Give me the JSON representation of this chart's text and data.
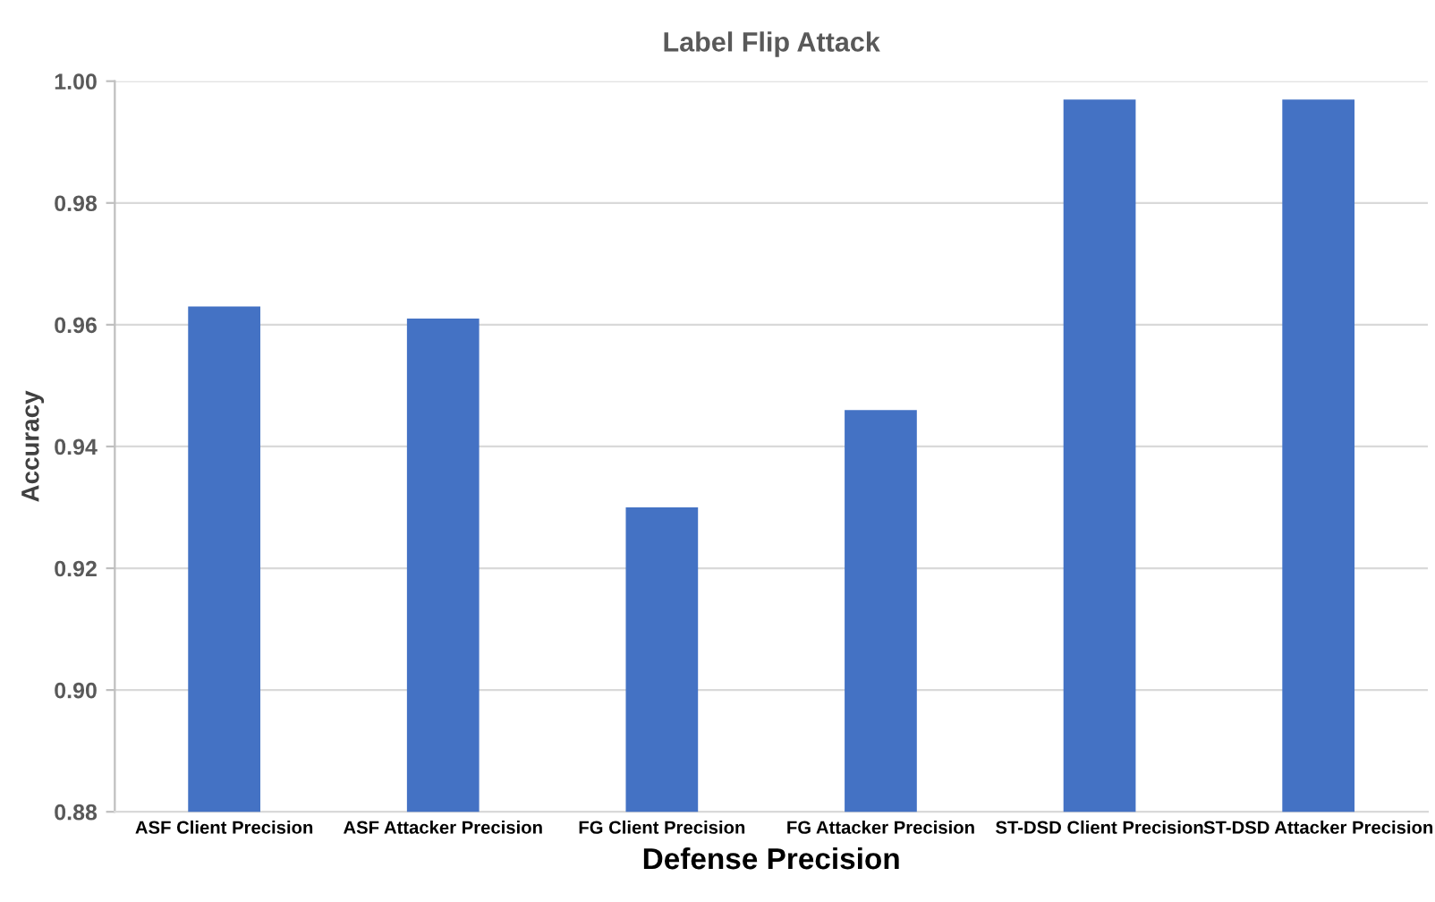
{
  "chart_data": {
    "type": "bar",
    "title": "Label Flip Attack",
    "xlabel": "Defense Precision",
    "ylabel": "Accuracy",
    "categories": [
      "ASF Client Precision",
      "ASF Attacker Precision",
      "FG Client Precision",
      "FG Attacker Precision",
      "ST-DSD Client Precision",
      "ST-DSD Attacker Precision"
    ],
    "values": [
      0.963,
      0.961,
      0.93,
      0.946,
      0.997,
      0.997
    ],
    "color": "#4472c4",
    "ylim": [
      0.88,
      1.0
    ],
    "yticks": [
      {
        "value": 0.88,
        "label": "0.88"
      },
      {
        "value": 0.9,
        "label": "0.90"
      },
      {
        "value": 0.92,
        "label": "0.92"
      },
      {
        "value": 0.94,
        "label": "0.94"
      },
      {
        "value": 0.96,
        "label": "0.96"
      },
      {
        "value": 0.98,
        "label": "0.98"
      },
      {
        "value": 1.0,
        "label": "1.00"
      }
    ],
    "grid": "y"
  }
}
